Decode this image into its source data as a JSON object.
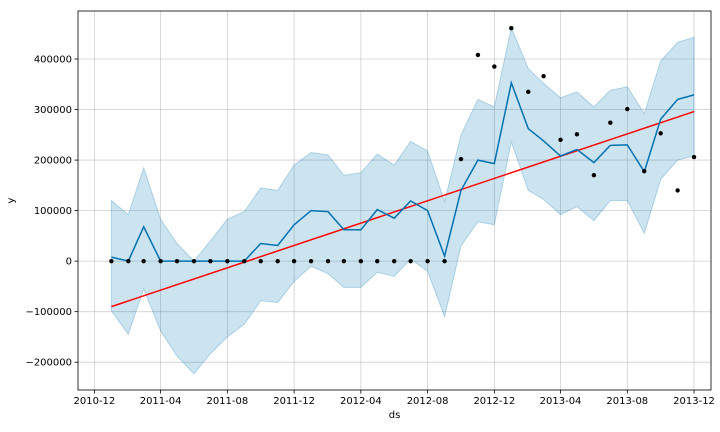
{
  "chart_data": {
    "type": "line",
    "title": "",
    "xlabel": "ds",
    "ylabel": "y",
    "grid": true,
    "x_type": "date",
    "xlim": [
      "2010-11-01",
      "2014-01-01"
    ],
    "ylim": [
      -255000,
      495000
    ],
    "x_ticks": [
      {
        "date": "2010-12-01",
        "label": "2010-12"
      },
      {
        "date": "2011-04-01",
        "label": "2011-04"
      },
      {
        "date": "2011-08-01",
        "label": "2011-08"
      },
      {
        "date": "2011-12-01",
        "label": "2011-12"
      },
      {
        "date": "2012-04-01",
        "label": "2012-04"
      },
      {
        "date": "2012-08-01",
        "label": "2012-08"
      },
      {
        "date": "2012-12-01",
        "label": "2012-12"
      },
      {
        "date": "2013-04-01",
        "label": "2013-04"
      },
      {
        "date": "2013-08-01",
        "label": "2013-08"
      },
      {
        "date": "2013-12-01",
        "label": "2013-12"
      }
    ],
    "y_ticks": [
      {
        "value": -200000,
        "label": "−200000"
      },
      {
        "value": -100000,
        "label": "−100000"
      },
      {
        "value": 0,
        "label": "0"
      },
      {
        "value": 100000,
        "label": "100000"
      },
      {
        "value": 200000,
        "label": "200000"
      },
      {
        "value": 300000,
        "label": "300000"
      },
      {
        "value": 400000,
        "label": "400000"
      }
    ],
    "colors": {
      "observed": "#000000",
      "forecast": "#0072B2",
      "interval_fill": "#0072B2",
      "trend": "#ff0000"
    },
    "x": [
      "2011-01-01",
      "2011-02-01",
      "2011-03-01",
      "2011-04-01",
      "2011-05-01",
      "2011-06-01",
      "2011-07-01",
      "2011-08-01",
      "2011-09-01",
      "2011-10-01",
      "2011-11-01",
      "2011-12-01",
      "2012-01-01",
      "2012-02-01",
      "2012-03-01",
      "2012-04-01",
      "2012-05-01",
      "2012-06-01",
      "2012-07-01",
      "2012-08-01",
      "2012-09-01",
      "2012-10-01",
      "2012-11-01",
      "2012-12-01",
      "2013-01-01",
      "2013-02-01",
      "2013-03-01",
      "2013-04-01",
      "2013-05-01",
      "2013-06-01",
      "2013-07-01",
      "2013-08-01",
      "2013-09-01",
      "2013-10-01",
      "2013-11-01",
      "2013-12-01"
    ],
    "series": [
      {
        "kind": "observed",
        "values": [
          0,
          0,
          0,
          0,
          0,
          0,
          0,
          0,
          0,
          0,
          0,
          0,
          0,
          0,
          0,
          0,
          0,
          0,
          0,
          0,
          0,
          202000,
          408000,
          385000,
          461000,
          335000,
          366000,
          240000,
          251000,
          170000,
          274000,
          301000,
          178000,
          253000,
          140000,
          206000
        ]
      },
      {
        "kind": "forecast",
        "values": [
          8000,
          0,
          68000,
          0,
          0,
          0,
          0,
          0,
          0,
          35000,
          31000,
          72000,
          100000,
          98000,
          62000,
          62000,
          102000,
          85000,
          119000,
          100000,
          10000,
          140000,
          200000,
          193000,
          353000,
          262000,
          238000,
          208000,
          221000,
          195000,
          229000,
          230000,
          177000,
          281000,
          320000,
          329000
        ]
      },
      {
        "kind": "forecast_lower",
        "values": [
          -98000,
          -145000,
          -55000,
          -138000,
          -188000,
          -223000,
          -183000,
          -150000,
          -125000,
          -78000,
          -82000,
          -40000,
          -10000,
          -25000,
          -52000,
          -52000,
          -22000,
          -30000,
          4000,
          -20000,
          -110000,
          30000,
          78000,
          72000,
          236000,
          140000,
          122000,
          92000,
          108000,
          80000,
          120000,
          120000,
          55000,
          162000,
          200000,
          208000
        ]
      },
      {
        "kind": "forecast_upper",
        "values": [
          120000,
          92000,
          185000,
          83000,
          35000,
          0,
          40000,
          83000,
          98000,
          145000,
          140000,
          190000,
          215000,
          210000,
          170000,
          175000,
          212000,
          190000,
          237000,
          218000,
          118000,
          250000,
          320000,
          305000,
          462000,
          381000,
          352000,
          323000,
          335000,
          305000,
          338000,
          345000,
          292000,
          396000,
          433000,
          443000
        ]
      },
      {
        "kind": "trend",
        "x": [
          "2011-01-01",
          "2013-12-01"
        ],
        "values": [
          -90000,
          296000
        ]
      }
    ]
  }
}
